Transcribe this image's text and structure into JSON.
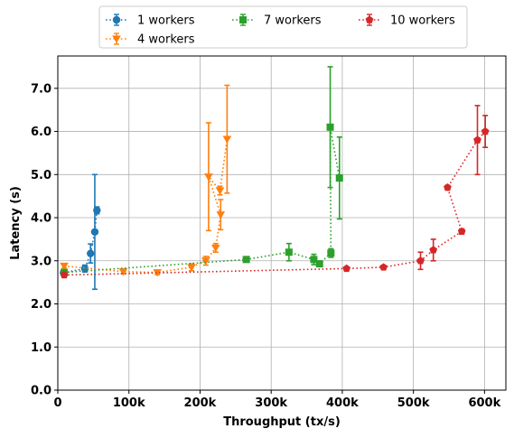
{
  "chart_data": {
    "type": "line",
    "title": "",
    "xlabel": "Throughput (tx/s)",
    "ylabel": "Latency (s)",
    "xlim": [
      0,
      630000
    ],
    "ylim": [
      0,
      7.75
    ],
    "xticks": [
      0,
      100000,
      200000,
      300000,
      400000,
      500000,
      600000
    ],
    "xtick_labels": [
      "0",
      "100k",
      "200k",
      "300k",
      "400k",
      "500k",
      "600k"
    ],
    "yticks": [
      0,
      1,
      2,
      3,
      4,
      5,
      6,
      7
    ],
    "ytick_labels": [
      "0.0",
      "1.0",
      "2.0",
      "3.0",
      "4.0",
      "5.0",
      "6.0",
      "7.0"
    ],
    "grid": true,
    "legend_position": "top-center",
    "series": [
      {
        "name": "1 workers",
        "color": "#1f77b4",
        "marker": "circle",
        "points": [
          {
            "x": 8000,
            "y": 2.72,
            "err": 0.05
          },
          {
            "x": 38000,
            "y": 2.82,
            "err": 0.08
          },
          {
            "x": 46000,
            "y": 3.17,
            "err": 0.22
          },
          {
            "x": 52000,
            "y": 3.67,
            "err": 1.33
          },
          {
            "x": 55000,
            "y": 4.17,
            "err": 0.08
          }
        ]
      },
      {
        "name": "4 workers",
        "color": "#ff7f0e",
        "marker": "triangle-down",
        "points": [
          {
            "x": 9000,
            "y": 2.88,
            "err": 0.05
          },
          {
            "x": 92000,
            "y": 2.75,
            "err": 0.05
          },
          {
            "x": 140000,
            "y": 2.73,
            "err": 0.05
          },
          {
            "x": 188000,
            "y": 2.85,
            "err": 0.08
          },
          {
            "x": 208000,
            "y": 3.0,
            "err": 0.1
          },
          {
            "x": 222000,
            "y": 3.3,
            "err": 0.1
          },
          {
            "x": 229000,
            "y": 4.07,
            "err": 0.35
          },
          {
            "x": 212000,
            "y": 4.95,
            "err": 1.25
          },
          {
            "x": 228000,
            "y": 4.63,
            "err": 0.1
          },
          {
            "x": 238000,
            "y": 5.82,
            "err": 1.25
          }
        ]
      },
      {
        "name": "7 workers",
        "color": "#2ca02c",
        "marker": "square",
        "points": [
          {
            "x": 9000,
            "y": 2.73,
            "err": 0.05
          },
          {
            "x": 265000,
            "y": 3.03,
            "err": 0.05
          },
          {
            "x": 325000,
            "y": 3.2,
            "err": 0.2
          },
          {
            "x": 360000,
            "y": 3.03,
            "err": 0.12
          },
          {
            "x": 368000,
            "y": 2.93,
            "err": 0.05
          },
          {
            "x": 384000,
            "y": 3.18,
            "err": 0.1
          },
          {
            "x": 383000,
            "y": 6.1,
            "err": 1.4
          },
          {
            "x": 396000,
            "y": 4.92,
            "err": 0.95
          }
        ]
      },
      {
        "name": "10 workers",
        "color": "#d62728",
        "marker": "pentagon",
        "points": [
          {
            "x": 9000,
            "y": 2.67,
            "err": 0.05
          },
          {
            "x": 406000,
            "y": 2.82,
            "err": 0.04
          },
          {
            "x": 458000,
            "y": 2.85,
            "err": 0.04
          },
          {
            "x": 510000,
            "y": 3.0,
            "err": 0.2
          },
          {
            "x": 528000,
            "y": 3.25,
            "err": 0.25
          },
          {
            "x": 568000,
            "y": 3.68,
            "err": 0.06
          },
          {
            "x": 548000,
            "y": 4.7,
            "err": 0.05
          },
          {
            "x": 590000,
            "y": 5.8,
            "err": 0.8
          },
          {
            "x": 601000,
            "y": 6.0,
            "err": 0.37
          }
        ]
      }
    ]
  }
}
